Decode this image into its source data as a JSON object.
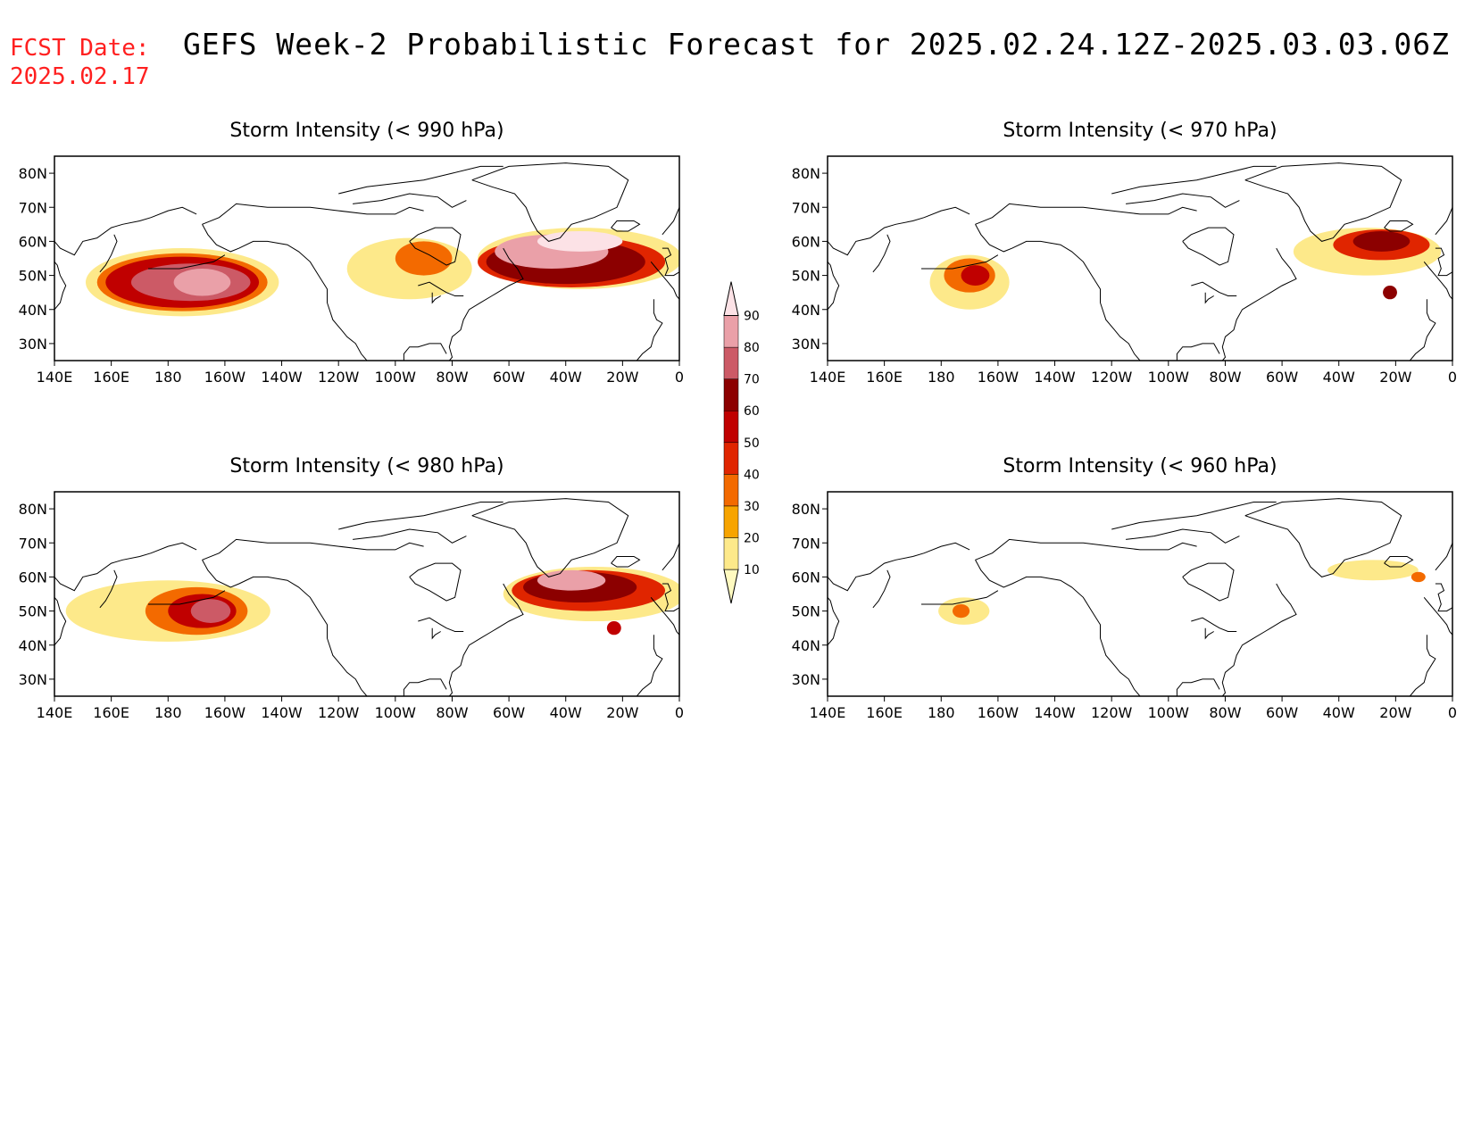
{
  "header": {
    "fcst_label": "FCST Date:",
    "fcst_date": "2025.02.17",
    "title": "GEFS Week-2 Probabilistic Forecast for 2025.02.24.12Z-2025.03.03.06Z"
  },
  "lon_ticks": [
    "140E",
    "160E",
    "180",
    "160W",
    "140W",
    "120W",
    "100W",
    "80W",
    "60W",
    "40W",
    "20W",
    "0"
  ],
  "lat_ticks": [
    "80N",
    "70N",
    "60N",
    "50N",
    "40N",
    "30N"
  ],
  "colorbar": {
    "levels": [
      10,
      20,
      30,
      40,
      50,
      60,
      70,
      80,
      90
    ],
    "colors": [
      "#fffac0",
      "#fde98a",
      "#f7a400",
      "#f36a00",
      "#e02500",
      "#c00000",
      "#8c0000",
      "#cc5a66",
      "#eaa0a8",
      "#fce2e6"
    ]
  },
  "panels": [
    {
      "title": "Storm Intensity (< 990 hPa)",
      "blobs": [
        {
          "lon": -175,
          "lat": 48,
          "rx": 34,
          "ry": 10,
          "level": 1
        },
        {
          "lon": -175,
          "lat": 48,
          "rx": 30,
          "ry": 8.5,
          "level": 3
        },
        {
          "lon": -175,
          "lat": 48,
          "rx": 27,
          "ry": 7.5,
          "level": 5
        },
        {
          "lon": -172,
          "lat": 48,
          "rx": 21,
          "ry": 5.5,
          "level": 7
        },
        {
          "lon": -168,
          "lat": 48,
          "rx": 10,
          "ry": 4,
          "level": 8
        },
        {
          "lon": -95,
          "lat": 52,
          "rx": 22,
          "ry": 9,
          "level": 1
        },
        {
          "lon": -90,
          "lat": 55,
          "rx": 10,
          "ry": 5,
          "level": 3
        },
        {
          "lon": -35,
          "lat": 55,
          "rx": 36,
          "ry": 9,
          "level": 1
        },
        {
          "lon": -38,
          "lat": 54,
          "rx": 33,
          "ry": 7.5,
          "level": 4
        },
        {
          "lon": -40,
          "lat": 54,
          "rx": 28,
          "ry": 6.5,
          "level": 6
        },
        {
          "lon": -45,
          "lat": 57,
          "rx": 20,
          "ry": 5,
          "level": 8
        },
        {
          "lon": -35,
          "lat": 60,
          "rx": 15,
          "ry": 3,
          "level": 9
        }
      ]
    },
    {
      "title": "Storm Intensity (< 970 hPa)",
      "blobs": [
        {
          "lon": -170,
          "lat": 48,
          "rx": 14,
          "ry": 8,
          "level": 1
        },
        {
          "lon": -170,
          "lat": 50,
          "rx": 9,
          "ry": 5,
          "level": 3
        },
        {
          "lon": -168,
          "lat": 50,
          "rx": 5,
          "ry": 3,
          "level": 5
        },
        {
          "lon": -30,
          "lat": 57,
          "rx": 26,
          "ry": 7,
          "level": 1
        },
        {
          "lon": -25,
          "lat": 59,
          "rx": 17,
          "ry": 4.5,
          "level": 4
        },
        {
          "lon": -25,
          "lat": 60,
          "rx": 10,
          "ry": 3,
          "level": 6
        },
        {
          "lon": -22,
          "lat": 45,
          "rx": 2.5,
          "ry": 2,
          "level": 6
        }
      ]
    },
    {
      "title": "Storm Intensity (< 980 hPa)",
      "blobs": [
        {
          "lon": -180,
          "lat": 50,
          "rx": 36,
          "ry": 9,
          "level": 1
        },
        {
          "lon": -170,
          "lat": 50,
          "rx": 18,
          "ry": 7,
          "level": 3
        },
        {
          "lon": -168,
          "lat": 50,
          "rx": 12,
          "ry": 5,
          "level": 5
        },
        {
          "lon": -165,
          "lat": 50,
          "rx": 7,
          "ry": 3.5,
          "level": 7
        },
        {
          "lon": -30,
          "lat": 55,
          "rx": 32,
          "ry": 8,
          "level": 1
        },
        {
          "lon": -32,
          "lat": 56,
          "rx": 27,
          "ry": 6,
          "level": 4
        },
        {
          "lon": -35,
          "lat": 57,
          "rx": 20,
          "ry": 4.5,
          "level": 6
        },
        {
          "lon": -38,
          "lat": 59,
          "rx": 12,
          "ry": 3,
          "level": 8
        },
        {
          "lon": -23,
          "lat": 45,
          "rx": 2.5,
          "ry": 2,
          "level": 5
        }
      ]
    },
    {
      "title": "Storm Intensity (< 960 hPa)",
      "blobs": [
        {
          "lon": -172,
          "lat": 50,
          "rx": 9,
          "ry": 4,
          "level": 1
        },
        {
          "lon": -173,
          "lat": 50,
          "rx": 3,
          "ry": 2,
          "level": 3
        },
        {
          "lon": -28,
          "lat": 62,
          "rx": 16,
          "ry": 3,
          "level": 1
        },
        {
          "lon": -12,
          "lat": 60,
          "rx": 2.5,
          "ry": 1.5,
          "level": 3
        }
      ]
    }
  ]
}
